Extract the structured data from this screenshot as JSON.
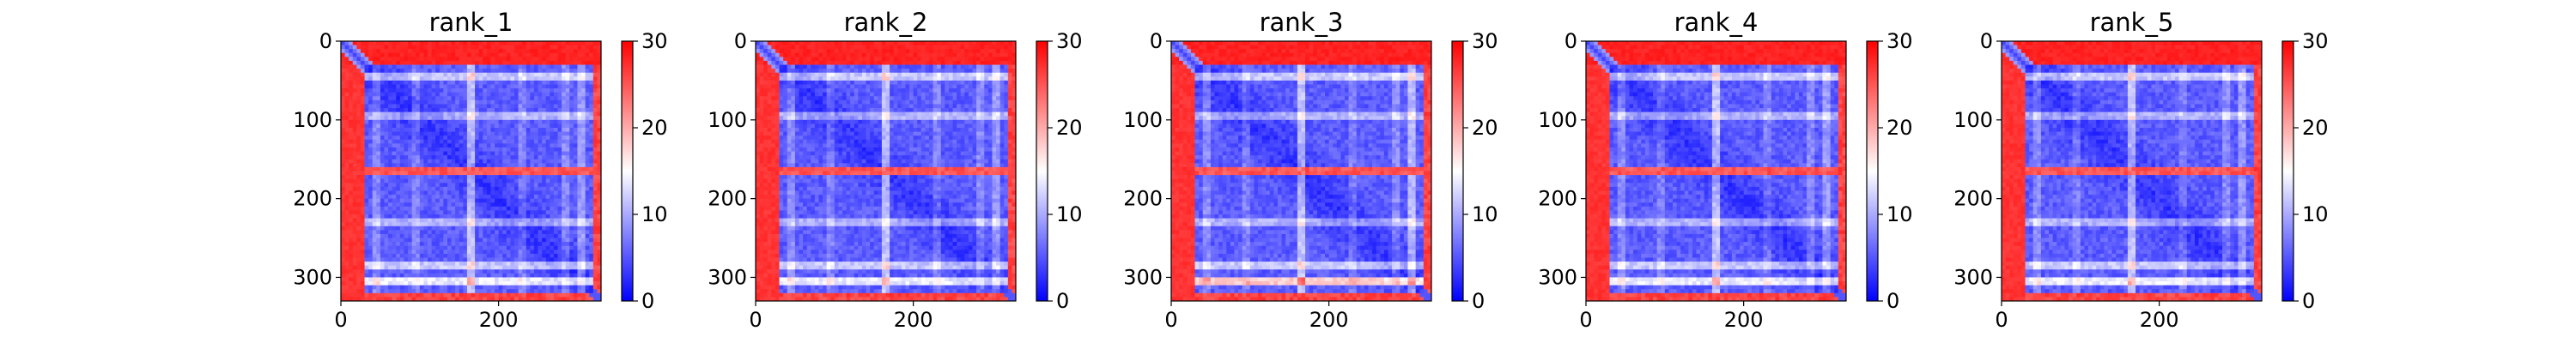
{
  "chart_data": [
    {
      "type": "heatmap",
      "title": "rank_1",
      "xlabel": "",
      "ylabel": "",
      "xlim": [
        0,
        330
      ],
      "ylim": [
        330,
        0
      ],
      "x_ticks": [
        0,
        200
      ],
      "y_ticks": [
        0,
        100,
        200,
        300
      ],
      "colorbar": {
        "range": [
          0,
          30
        ],
        "ticks": [
          0,
          10,
          20,
          30
        ],
        "colormap": "bwr"
      },
      "features": {
        "n_residues": 330,
        "n_term_disordered_end": 30,
        "c_term_disordered_start": 318,
        "high_rows": [
          165
        ],
        "stripe_rows": [
          45,
          95,
          165,
          230,
          285,
          305
        ],
        "stripe_strength": [
          0.45,
          0.35,
          1.0,
          0.35,
          0.45,
          0.6
        ]
      },
      "grid": false,
      "legend": "none"
    },
    {
      "type": "heatmap",
      "title": "rank_2",
      "xlabel": "",
      "ylabel": "",
      "xlim": [
        0,
        330
      ],
      "ylim": [
        330,
        0
      ],
      "x_ticks": [
        0,
        200
      ],
      "y_ticks": [
        0,
        100,
        200,
        300
      ],
      "colorbar": {
        "range": [
          0,
          30
        ],
        "ticks": [
          0,
          10,
          20,
          30
        ],
        "colormap": "bwr"
      },
      "features": {
        "n_residues": 330,
        "n_term_disordered_end": 30,
        "c_term_disordered_start": 318,
        "high_rows": [
          165
        ],
        "stripe_rows": [
          45,
          95,
          165,
          230,
          285,
          305
        ],
        "stripe_strength": [
          0.45,
          0.35,
          1.0,
          0.35,
          0.45,
          0.6
        ]
      },
      "grid": false,
      "legend": "none"
    },
    {
      "type": "heatmap",
      "title": "rank_3",
      "xlabel": "",
      "ylabel": "",
      "xlim": [
        0,
        330
      ],
      "ylim": [
        330,
        0
      ],
      "x_ticks": [
        0,
        200
      ],
      "y_ticks": [
        0,
        100,
        200,
        300
      ],
      "colorbar": {
        "range": [
          0,
          30
        ],
        "ticks": [
          0,
          10,
          20,
          30
        ],
        "colormap": "bwr"
      },
      "features": {
        "n_residues": 330,
        "n_term_disordered_end": 30,
        "c_term_disordered_start": 318,
        "high_rows": [
          165
        ],
        "stripe_rows": [
          45,
          95,
          165,
          230,
          285,
          305
        ],
        "stripe_strength": [
          0.45,
          0.35,
          1.0,
          0.35,
          0.45,
          0.9
        ]
      },
      "grid": false,
      "legend": "none"
    },
    {
      "type": "heatmap",
      "title": "rank_4",
      "xlabel": "",
      "ylabel": "",
      "xlim": [
        0,
        330
      ],
      "ylim": [
        330,
        0
      ],
      "x_ticks": [
        0,
        200
      ],
      "y_ticks": [
        0,
        100,
        200,
        300
      ],
      "colorbar": {
        "range": [
          0,
          30
        ],
        "ticks": [
          0,
          10,
          20,
          30
        ],
        "colormap": "bwr"
      },
      "features": {
        "n_residues": 330,
        "n_term_disordered_end": 30,
        "c_term_disordered_start": 318,
        "high_rows": [
          165
        ],
        "stripe_rows": [
          45,
          95,
          165,
          230,
          285,
          305
        ],
        "stripe_strength": [
          0.45,
          0.35,
          1.0,
          0.35,
          0.45,
          0.6
        ]
      },
      "grid": false,
      "legend": "none"
    },
    {
      "type": "heatmap",
      "title": "rank_5",
      "xlabel": "",
      "ylabel": "",
      "xlim": [
        0,
        330
      ],
      "ylim": [
        330,
        0
      ],
      "x_ticks": [
        0,
        200
      ],
      "y_ticks": [
        0,
        100,
        200,
        300
      ],
      "colorbar": {
        "range": [
          0,
          30
        ],
        "ticks": [
          0,
          10,
          20,
          30
        ],
        "colormap": "bwr"
      },
      "features": {
        "n_residues": 330,
        "n_term_disordered_end": 30,
        "c_term_disordered_start": 318,
        "high_rows": [
          165
        ],
        "stripe_rows": [
          45,
          95,
          165,
          230,
          285,
          305
        ],
        "stripe_strength": [
          0.45,
          0.35,
          1.0,
          0.35,
          0.45,
          0.6
        ]
      },
      "grid": false,
      "legend": "none"
    }
  ]
}
